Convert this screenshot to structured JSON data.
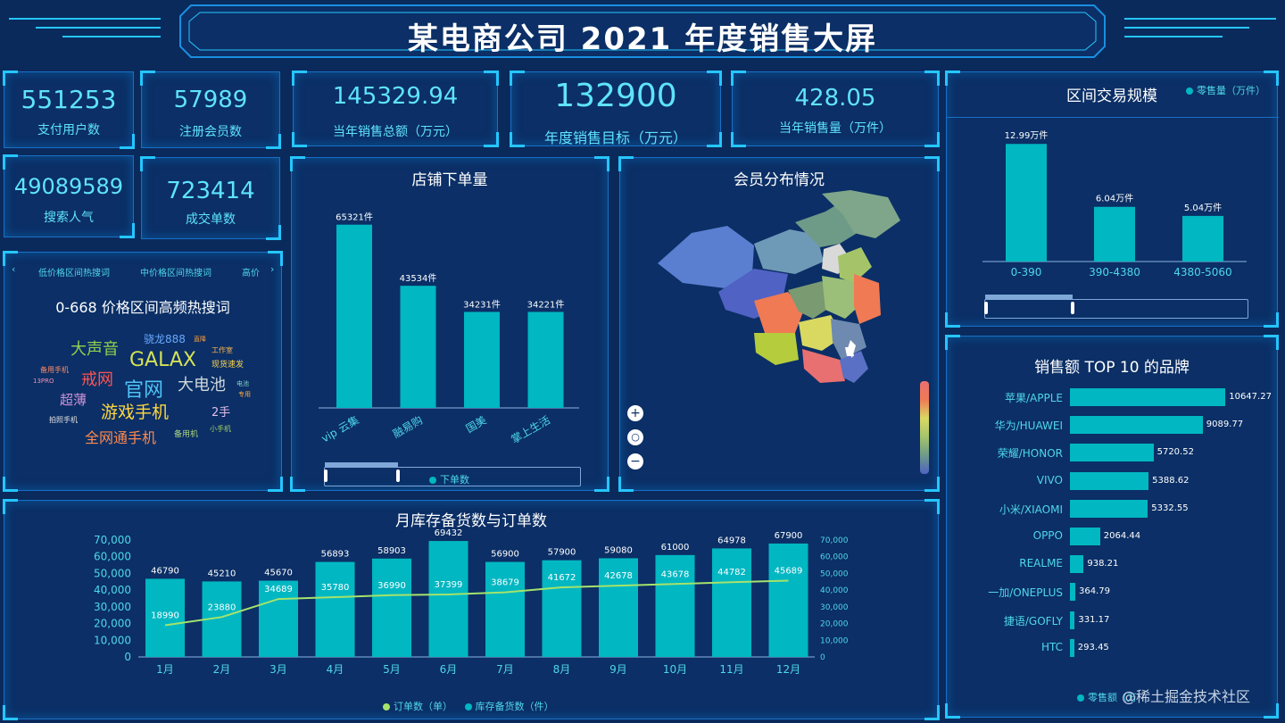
{
  "header": {
    "title": "某电商公司 2021 年度销售大屏"
  },
  "kpis_small": [
    {
      "value": "551253",
      "label": "支付用户数"
    },
    {
      "value": "57989",
      "label": "注册会员数"
    },
    {
      "value": "49089589",
      "label": "搜索人气"
    },
    {
      "value": "723414",
      "label": "成交单数"
    }
  ],
  "kpis_large": [
    {
      "value": "145329.94",
      "label": "当年销售总额（万元）"
    },
    {
      "value": "132900",
      "label": "年度销售目标（万元）"
    },
    {
      "value": "428.05",
      "label": "当年销售量（万件）"
    }
  ],
  "wordcloud": {
    "tabs": [
      "低价格区间热搜词",
      "中价格区间热搜词",
      "高价"
    ],
    "title": "0-668 价格区间高频热搜词",
    "words": [
      {
        "text": "大声音",
        "color": "#8fd14f"
      },
      {
        "text": "骁龙888",
        "color": "#6aa8ff"
      },
      {
        "text": "直降",
        "color": "#ff9f40"
      },
      {
        "text": "GALAX",
        "color": "#d4e157"
      },
      {
        "text": "工作室",
        "color": "#ffb74d"
      },
      {
        "text": "现货速发",
        "color": "#ffd54f"
      },
      {
        "text": "备用手机",
        "color": "#ff8a65"
      },
      {
        "text": "13PRO",
        "color": "#f48fb1"
      },
      {
        "text": "戒网",
        "color": "#ff5252"
      },
      {
        "text": "官网",
        "color": "#4fc3f7"
      },
      {
        "text": "大电池",
        "color": "#cfd8dc"
      },
      {
        "text": "电池",
        "color": "#80cbc4"
      },
      {
        "text": "专用",
        "color": "#ffab40"
      },
      {
        "text": "超薄",
        "color": "#ce93d8"
      },
      {
        "text": "游戏手机",
        "color": "#ffd740"
      },
      {
        "text": "2手",
        "color": "#e1bee7"
      },
      {
        "text": "拍照手机",
        "color": "#e0e0e0"
      },
      {
        "text": "全网通手机",
        "color": "#ff8a50"
      },
      {
        "text": "备用机",
        "color": "#aed581"
      },
      {
        "text": "小手机",
        "color": "#9ccc65"
      }
    ]
  },
  "store_orders": {
    "title": "店铺下单量",
    "legend": "下单数",
    "color": "#00b7c2"
  },
  "member_map": {
    "title": "会员分布情况"
  },
  "price_range": {
    "title": "区间交易规模",
    "legend": "零售量（万件）"
  },
  "brands": {
    "title": "销售额 TOP 10 的品牌",
    "legend": "零售额（万",
    "watermark": "@稀土掘金技术社区"
  },
  "monthly": {
    "title": "月库存备货数与订单数",
    "legend_orders": "订单数（单）",
    "legend_stock": "库存备货数（件）",
    "bar_color": "#00b7c2",
    "line_color": "#a5e36b"
  },
  "chart_data": [
    {
      "type": "bar",
      "id": "store_orders",
      "categories": [
        "vip 云集",
        "融易购",
        "国美",
        "掌上生活"
      ],
      "values": [
        65321,
        43534,
        34231,
        34221
      ],
      "value_labels": [
        "65321件",
        "43534件",
        "34231件",
        "34221件"
      ]
    },
    {
      "type": "bar",
      "id": "price_range",
      "categories": [
        "0-390",
        "390-4380",
        "4380-5060"
      ],
      "values": [
        12.99,
        6.04,
        5.04
      ],
      "value_labels": [
        "12.99万件",
        "6.04万件",
        "5.04万件"
      ]
    },
    {
      "type": "bar",
      "id": "brands",
      "orientation": "horizontal",
      "categories": [
        "苹果/APPLE",
        "华为/HUAWEI",
        "荣耀/HONOR",
        "VIVO",
        "小米/XIAOMI",
        "OPPO",
        "REALME",
        "一加/ONEPLUS",
        "捷语/GOFLY",
        "HTC"
      ],
      "values": [
        10647.27,
        9089.77,
        5720.52,
        5388.62,
        5332.55,
        2064.44,
        938.21,
        364.79,
        331.17,
        293.45
      ],
      "value_labels": [
        "10647.27",
        "9089.77",
        "5720.52",
        "5388.62",
        "5332.55",
        "2064.44",
        "938.21",
        "364.79",
        "331.17",
        "293.45"
      ]
    },
    {
      "type": "bar",
      "id": "monthly",
      "categories": [
        "1月",
        "2月",
        "3月",
        "4月",
        "5月",
        "6月",
        "7月",
        "8月",
        "9月",
        "10月",
        "11月",
        "12月"
      ],
      "series": [
        {
          "name": "库存备货数（件）",
          "type": "bar",
          "values": [
            46790,
            45210,
            45670,
            56893,
            58903,
            69432,
            56900,
            57900,
            59080,
            61000,
            64978,
            67900
          ],
          "value_labels": [
            "46790",
            "45210",
            "45670",
            "56893",
            "58903",
            "69432",
            "56900",
            "57900",
            "59080",
            "61000",
            "64978",
            "67900"
          ]
        },
        {
          "name": "订单数（单）",
          "type": "line",
          "values": [
            18990,
            23880,
            34689,
            35780,
            36990,
            37399,
            38679,
            41672,
            42678,
            43678,
            44782,
            45689
          ],
          "value_labels": [
            "18990",
            "23880",
            "34689",
            "35780",
            "36990",
            "37399",
            "38679",
            "41672",
            "42678",
            "43678",
            "44782",
            "45689"
          ]
        }
      ],
      "ylim": [
        0,
        70000
      ],
      "yticks_left": [
        "0",
        "10,000",
        "20,000",
        "30,000",
        "40,000",
        "50,000",
        "60,000",
        "70,000"
      ],
      "yticks_right": [
        "0",
        "10,000",
        "20,000",
        "30,000",
        "40,000",
        "50,000",
        "60,000",
        "70,000"
      ]
    }
  ]
}
